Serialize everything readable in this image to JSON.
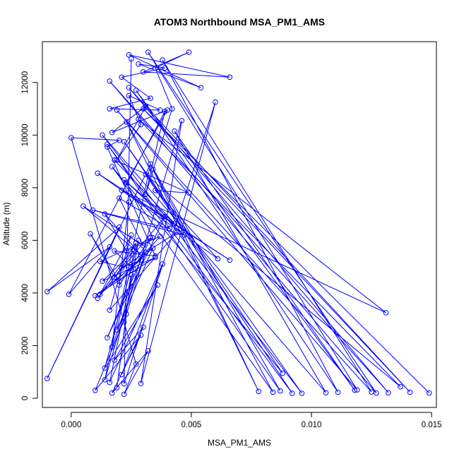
{
  "chart_data": {
    "type": "line",
    "title": "ATOM3 Northbound MSA_PM1_AMS",
    "xlabel": "MSA_PM1_AMS",
    "ylabel": "Altitude (m)",
    "xlim": [
      -0.0012,
      0.0152
    ],
    "ylim": [
      -350,
      13550
    ],
    "x_ticks": [
      0.0,
      0.005,
      0.01,
      0.015
    ],
    "x_tick_labels": [
      "0.000",
      "0.005",
      "0.010",
      "0.015"
    ],
    "y_ticks": [
      0,
      2000,
      4000,
      6000,
      8000,
      10000,
      12000
    ],
    "y_tick_labels": [
      "0",
      "2000",
      "4000",
      "6000",
      "8000",
      "10000",
      "12000"
    ],
    "grid": false,
    "markers": "open-circle",
    "color": "#0000ff",
    "series": [
      {
        "x": [
          0.0149,
          0.003,
          0.0141,
          0.0024,
          0.0132,
          0.0016,
          0.0127,
          0.0032,
          0.0119,
          0.0019,
          0.0125,
          0.0038,
          0.0111,
          0.0027,
          0.0118,
          0.0043,
          0.0106,
          0.0013,
          0.0096,
          0.0022,
          0.0088,
          0.0017,
          0.0084,
          0.0034,
          0.0078,
          0.0023,
          0.0087,
          0.0015,
          0.0092,
          0.0031,
          0.0137,
          0.0028,
          0.0131,
          0.0021,
          0.0066,
          0.0011,
          0.0061,
          0.0035,
          0.0049,
          0.0018,
          0.0043,
          0.0022,
          0.0047,
          0.0009,
          0.0041,
          0.002,
          0.003,
          0.0005,
          0.0029,
          0.0014,
          0.0023,
          0.0037,
          0.002,
          0.0008,
          0.0018,
          0.0026,
          0.0013,
          0.0035,
          0.001,
          0.0029,
          0.0021,
          0.0044,
          0.0016,
          0.0025,
          0.0012,
          0.0034,
          0.0019,
          0.0027,
          0.0011,
          0.0039,
          0.0015,
          0.0033,
          0.002,
          0.0024,
          0.0017,
          0.0031,
          0.0022,
          0.0028,
          0.0014,
          0.0036,
          0.0018,
          0.003,
          0.0021,
          0.0038,
          0.0016,
          0.0025,
          0.0019,
          0.0023,
          0.001,
          0.0029,
          0.0017,
          0.0032,
          0.0022,
          0.0027,
          0.0,
          0.002,
          0.0015,
          0.0035,
          0.0018,
          0.0026,
          0.0012,
          0.0034,
          0.0023,
          0.004,
          0.0017,
          0.0031,
          0.0019,
          0.0029,
          0.0024,
          0.0037,
          0.0016,
          0.0033,
          0.0021,
          0.0039,
          0.0028,
          0.0054,
          0.0024,
          0.0066,
          0.003,
          0.0049,
          0.0035,
          0.0042,
          0.0031,
          0.0039,
          -0.0001,
          0.0016,
          -0.001,
          0.002,
          -0.001,
          0.0033,
          0.0014,
          0.0046,
          0.0029,
          0.006,
          0.0022,
          0.0025
        ],
        "y": [
          200,
          11000,
          230,
          11800,
          210,
          12050,
          200,
          13150,
          320,
          10950,
          240,
          12850,
          230,
          11700,
          310,
          10150,
          210,
          10000,
          190,
          9750,
          950,
          8800,
          230,
          8700,
          260,
          10500,
          280,
          9650,
          190,
          8500,
          440,
          10600,
          3250,
          7900,
          5250,
          8550,
          5300,
          7900,
          7800,
          9050,
          6650,
          8300,
          6200,
          7150,
          6450,
          7600,
          5800,
          7300,
          5450,
          7000,
          5600,
          6150,
          4450,
          6250,
          4600,
          5600,
          4450,
          5350,
          3900,
          5250,
          4950,
          6300,
          3350,
          6200,
          3950,
          5700,
          2600,
          5900,
          3800,
          6900,
          2300,
          6100,
          4300,
          7450,
          1950,
          5550,
          2900,
          6000,
          1150,
          4300,
          1450,
          2700,
          900,
          5100,
          600,
          4700,
          400,
          3200,
          300,
          2400,
          200,
          1800,
          150,
          1300,
          9900,
          9800,
          9550,
          5400,
          5600,
          4900,
          5200,
          6100,
          8200,
          10950,
          10100,
          11100,
          9050,
          10400,
          11500,
          10950,
          11000,
          11400,
          12200,
          12550,
          12700,
          11800,
          13050,
          12200,
          12400,
          13150,
          12550,
          11000,
          7750,
          10900,
          3950,
          5750,
          4050,
          6500,
          750,
          8900,
          700,
          10550,
          560,
          11250,
          550,
          12900
        ]
      }
    ]
  }
}
